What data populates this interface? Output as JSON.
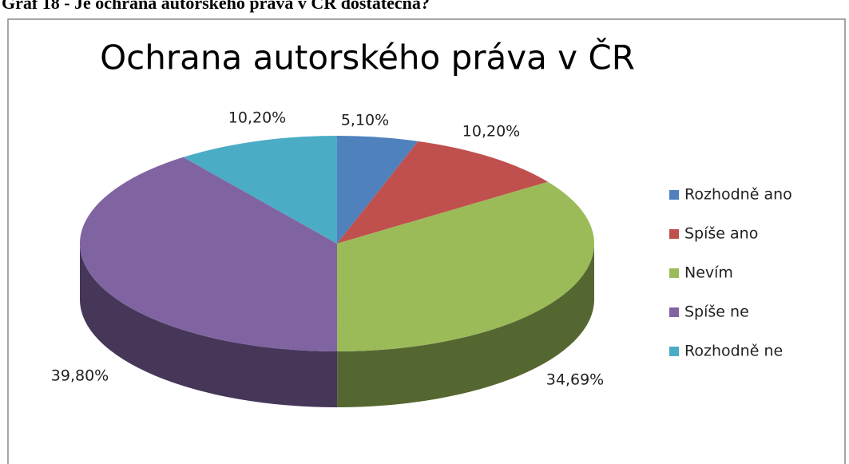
{
  "caption": "Graf 18 - Je ochrana autorského práva v ČR dostatečná?",
  "chart_data": {
    "type": "pie",
    "title": "Ochrana autorského práva v ČR",
    "categories": [
      "Rozhodně ano",
      "Spíše ano",
      "Nevím",
      "Spíše ne",
      "Rozhodně ne"
    ],
    "values": [
      5.1,
      10.2,
      34.69,
      39.8,
      10.2
    ],
    "value_labels": [
      "5,10%",
      "10,20%",
      "34,69%",
      "39,80%",
      "10,20%"
    ],
    "colors": [
      "#4f81bd",
      "#c0504d",
      "#9bbb59",
      "#8064a2",
      "#4bacc6"
    ],
    "legend": "right"
  }
}
